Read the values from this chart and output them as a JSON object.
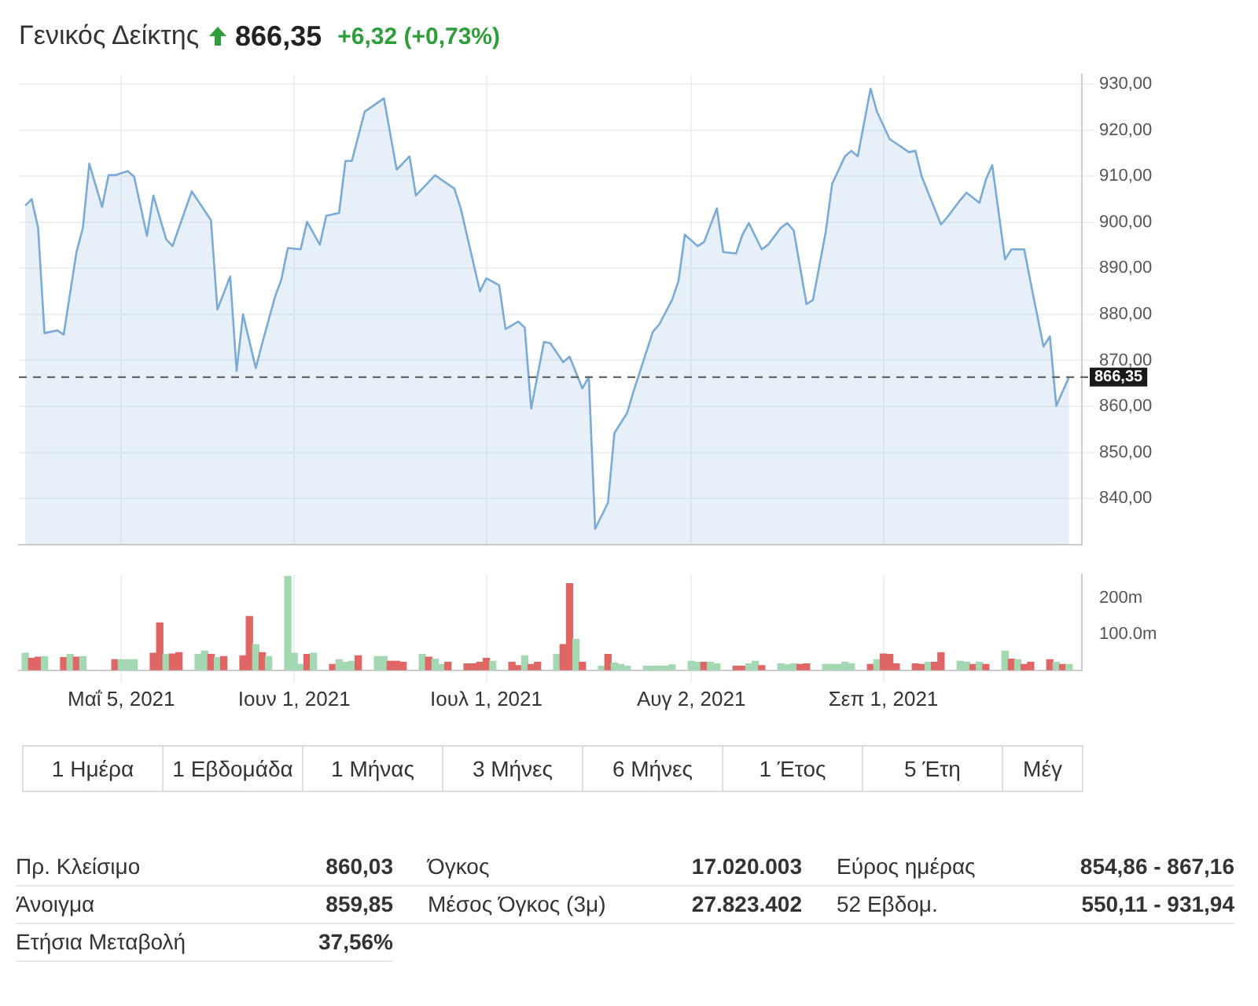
{
  "chart_data": [
    {
      "type": "area",
      "title": "Γενικός Δείκτης",
      "annotations": [
        "866,35",
        "+6,32 (+0,73%)"
      ],
      "color": "#7aaad6",
      "x": [
        "2021-04-20",
        "2021-04-21",
        "2021-04-22",
        "2021-04-23",
        "2021-04-25",
        "2021-04-26",
        "2021-04-28",
        "2021-04-29",
        "2021-04-30",
        "2021-05-02",
        "2021-05-03",
        "2021-05-04",
        "2021-05-06",
        "2021-05-07",
        "2021-05-09",
        "2021-05-10",
        "2021-05-12",
        "2021-05-13",
        "2021-05-14",
        "2021-05-16",
        "2021-05-19",
        "2021-05-20",
        "2021-05-22",
        "2021-05-23",
        "2021-05-24",
        "2021-05-26",
        "2021-05-27",
        "2021-05-29",
        "2021-05-30",
        "2021-05-31",
        "2021-06-02",
        "2021-06-03",
        "2021-06-05",
        "2021-06-06",
        "2021-06-08",
        "2021-06-09",
        "2021-06-10",
        "2021-06-12",
        "2021-06-15",
        "2021-06-17",
        "2021-06-19",
        "2021-06-20",
        "2021-06-23",
        "2021-06-24",
        "2021-06-26",
        "2021-06-27",
        "2021-06-30",
        "2021-07-01",
        "2021-07-03",
        "2021-07-04",
        "2021-07-06",
        "2021-07-07",
        "2021-07-08",
        "2021-07-10",
        "2021-07-11",
        "2021-07-13",
        "2021-07-14",
        "2021-07-16",
        "2021-07-17",
        "2021-07-18",
        "2021-07-20",
        "2021-07-21",
        "2021-07-23",
        "2021-07-24",
        "2021-07-27",
        "2021-07-28",
        "2021-07-30",
        "2021-07-31",
        "2021-08-01",
        "2021-08-03",
        "2021-08-04",
        "2021-08-06",
        "2021-08-07",
        "2021-08-09",
        "2021-08-10",
        "2021-08-11",
        "2021-08-13",
        "2021-08-14",
        "2021-08-16",
        "2021-08-17",
        "2021-08-18",
        "2021-08-20",
        "2021-08-21",
        "2021-08-23",
        "2021-08-24",
        "2021-08-26",
        "2021-08-27",
        "2021-08-28",
        "2021-08-30",
        "2021-08-31",
        "2021-09-02",
        "2021-09-03",
        "2021-09-05",
        "2021-09-06",
        "2021-09-07",
        "2021-09-08",
        "2021-09-10",
        "2021-09-11",
        "2021-09-13",
        "2021-09-14",
        "2021-09-16",
        "2021-09-17",
        "2021-09-18",
        "2021-09-20",
        "2021-09-21",
        "2021-09-23",
        "2021-09-24",
        "2021-09-26",
        "2021-09-27",
        "2021-09-28",
        "2021-09-30"
      ],
      "values": [
        903.6,
        905,
        898.8,
        875.9,
        876.5,
        875.6,
        893.5,
        898.8,
        912.7,
        903.3,
        910.2,
        910.2,
        911.1,
        909.9,
        897,
        905.8,
        896.3,
        894.8,
        898.8,
        906.7,
        900.4,
        881,
        888.2,
        867.7,
        880,
        868.3,
        873.7,
        883.8,
        887.6,
        894.4,
        894.1,
        900.1,
        895.1,
        901.4,
        902,
        913.3,
        913.3,
        924,
        926.9,
        911.4,
        914.3,
        905.8,
        910.2,
        909.2,
        907.3,
        903,
        885,
        887.8,
        886.3,
        876.8,
        878.4,
        877.1,
        859.5,
        874,
        873.7,
        869.6,
        870.8,
        863.9,
        866.4,
        833.4,
        839.1,
        854.2,
        858.6,
        863.3,
        876.2,
        877.8,
        883.1,
        887.2,
        897.3,
        894.8,
        895.7,
        903,
        893.5,
        893.2,
        897.3,
        899.8,
        894.1,
        895.1,
        898.8,
        899.8,
        898.2,
        882.2,
        883.1,
        897.9,
        908.3,
        914.3,
        915.5,
        914.3,
        929,
        924,
        918,
        917.1,
        915.2,
        915.5,
        909.9,
        906.4,
        899.5,
        901.1,
        904.8,
        906.4,
        904.2,
        909.2,
        912.4,
        891.9,
        894.1,
        894.1,
        886.9,
        873,
        875.2,
        860.1,
        866.4
      ],
      "xlim": [
        "2021-04-19",
        "2021-10-02"
      ],
      "xticks": [
        {
          "value": "2021-05-05",
          "label": null
        },
        {
          "value": "2021-06-01",
          "label": null
        },
        {
          "value": "2021-07-01",
          "label": null
        },
        {
          "value": "2021-08-02",
          "label": null
        },
        {
          "value": "2021-09-01",
          "label": null
        }
      ],
      "ylim": [
        830,
        932
      ],
      "yticks": [
        {
          "value": 840,
          "label": "840,00"
        },
        {
          "value": 850,
          "label": "850,00"
        },
        {
          "value": 860,
          "label": "860,00"
        },
        {
          "value": 870,
          "label": "870,00"
        },
        {
          "value": 880,
          "label": "880,00"
        },
        {
          "value": 890,
          "label": "890,00"
        },
        {
          "value": 900,
          "label": "900,00"
        },
        {
          "value": 910,
          "label": "910,00"
        },
        {
          "value": 920,
          "label": "920,00"
        },
        {
          "value": 930,
          "label": "930,00"
        }
      ],
      "ref_lines": [
        {
          "axis": "y",
          "value": 866.35,
          "label": "866,35",
          "color": "#666666",
          "line_style": "dashed"
        }
      ],
      "grid": true,
      "tick_labels": "y"
    },
    {
      "type": "bar",
      "x": [
        "2021-04-20",
        "2021-04-21",
        "2021-04-22",
        "2021-04-23",
        "2021-04-26",
        "2021-04-27",
        "2021-04-28",
        "2021-04-29",
        "2021-05-04",
        "2021-05-05",
        "2021-05-06",
        "2021-05-07",
        "2021-05-10",
        "2021-05-11",
        "2021-05-12",
        "2021-05-13",
        "2021-05-14",
        "2021-05-17",
        "2021-05-18",
        "2021-05-19",
        "2021-05-20",
        "2021-05-21",
        "2021-05-24",
        "2021-05-25",
        "2021-05-26",
        "2021-05-27",
        "2021-05-28",
        "2021-05-31",
        "2021-06-01",
        "2021-06-02",
        "2021-06-03",
        "2021-06-04",
        "2021-06-07",
        "2021-06-08",
        "2021-06-09",
        "2021-06-10",
        "2021-06-11",
        "2021-06-14",
        "2021-06-15",
        "2021-06-16",
        "2021-06-17",
        "2021-06-18",
        "2021-06-21",
        "2021-06-22",
        "2021-06-23",
        "2021-06-24",
        "2021-06-25",
        "2021-06-28",
        "2021-06-29",
        "2021-06-30",
        "2021-07-01",
        "2021-07-02",
        "2021-07-05",
        "2021-07-06",
        "2021-07-07",
        "2021-07-08",
        "2021-07-09",
        "2021-07-12",
        "2021-07-13",
        "2021-07-14",
        "2021-07-15",
        "2021-07-16",
        "2021-07-19",
        "2021-07-20",
        "2021-07-21",
        "2021-07-22",
        "2021-07-23",
        "2021-07-26",
        "2021-07-27",
        "2021-07-28",
        "2021-07-29",
        "2021-07-30",
        "2021-08-02",
        "2021-08-03",
        "2021-08-04",
        "2021-08-05",
        "2021-08-06",
        "2021-08-09",
        "2021-08-10",
        "2021-08-11",
        "2021-08-12",
        "2021-08-13",
        "2021-08-16",
        "2021-08-17",
        "2021-08-18",
        "2021-08-19",
        "2021-08-20",
        "2021-08-23",
        "2021-08-24",
        "2021-08-25",
        "2021-08-26",
        "2021-08-27",
        "2021-08-30",
        "2021-08-31",
        "2021-09-01",
        "2021-09-02",
        "2021-09-03",
        "2021-09-06",
        "2021-09-07",
        "2021-09-08",
        "2021-09-09",
        "2021-09-10",
        "2021-09-13",
        "2021-09-14",
        "2021-09-15",
        "2021-09-16",
        "2021-09-17",
        "2021-09-20",
        "2021-09-21",
        "2021-09-22",
        "2021-09-23",
        "2021-09-24",
        "2021-09-27",
        "2021-09-28",
        "2021-09-29",
        "2021-09-30"
      ],
      "values": [
        47,
        33,
        36,
        38,
        35,
        44,
        36,
        38,
        29,
        29,
        29,
        29,
        47,
        131,
        44,
        45,
        49,
        44,
        53,
        44,
        35,
        38,
        40,
        149,
        71,
        49,
        38,
        260,
        47,
        16,
        44,
        47,
        16,
        29,
        22,
        25,
        40,
        38,
        38,
        25,
        25,
        22,
        44,
        36,
        31,
        16,
        22,
        18,
        18,
        22,
        33,
        25,
        22,
        13,
        40,
        16,
        22,
        44,
        71,
        240,
        86,
        22,
        11,
        44,
        20,
        16,
        11,
        11,
        11,
        11,
        11,
        15,
        25,
        22,
        22,
        22,
        18,
        11,
        11,
        18,
        25,
        13,
        18,
        15,
        18,
        16,
        18,
        16,
        16,
        16,
        22,
        18,
        16,
        29,
        45,
        44,
        18,
        18,
        16,
        22,
        22,
        49,
        25,
        22,
        16,
        22,
        16,
        53,
        31,
        29,
        16,
        22,
        29,
        22,
        16,
        16
      ],
      "colors": [
        "#a3d8b2",
        "#e06666",
        "#e06666",
        "#a3d8b2",
        "#e06666",
        "#a3d8b2",
        "#e06666",
        "#a3d8b2",
        "#e06666",
        "#a3d8b2",
        "#a3d8b2",
        "#a3d8b2",
        "#e06666",
        "#e06666",
        "#a3d8b2",
        "#e06666",
        "#e06666",
        "#a3d8b2",
        "#a3d8b2",
        "#e06666",
        "#a3d8b2",
        "#e06666",
        "#e06666",
        "#e06666",
        "#a3d8b2",
        "#e06666",
        "#a3d8b2",
        "#a3d8b2",
        "#a3d8b2",
        "#a3d8b2",
        "#e06666",
        "#a3d8b2",
        "#e06666",
        "#a3d8b2",
        "#a3d8b2",
        "#a3d8b2",
        "#e06666",
        "#a3d8b2",
        "#a3d8b2",
        "#e06666",
        "#e06666",
        "#e06666",
        "#a3d8b2",
        "#e06666",
        "#a3d8b2",
        "#a3d8b2",
        "#e06666",
        "#e06666",
        "#e06666",
        "#e06666",
        "#e06666",
        "#a3d8b2",
        "#e06666",
        "#e06666",
        "#a3d8b2",
        "#e06666",
        "#e06666",
        "#a3d8b2",
        "#e06666",
        "#e06666",
        "#a3d8b2",
        "#e06666",
        "#a3d8b2",
        "#e06666",
        "#a3d8b2",
        "#a3d8b2",
        "#a3d8b2",
        "#a3d8b2",
        "#a3d8b2",
        "#a3d8b2",
        "#a3d8b2",
        "#a3d8b2",
        "#a3d8b2",
        "#a3d8b2",
        "#e06666",
        "#a3d8b2",
        "#a3d8b2",
        "#e06666",
        "#e06666",
        "#a3d8b2",
        "#a3d8b2",
        "#e06666",
        "#a3d8b2",
        "#a3d8b2",
        "#a3d8b2",
        "#e06666",
        "#e06666",
        "#a3d8b2",
        "#a3d8b2",
        "#a3d8b2",
        "#a3d8b2",
        "#a3d8b2",
        "#e06666",
        "#a3d8b2",
        "#e06666",
        "#e06666",
        "#e06666",
        "#e06666",
        "#e06666",
        "#a3d8b2",
        "#e06666",
        "#e06666",
        "#a3d8b2",
        "#a3d8b2",
        "#e06666",
        "#a3d8b2",
        "#e06666",
        "#a3d8b2",
        "#e06666",
        "#a3d8b2",
        "#e06666",
        "#e06666",
        "#e06666",
        "#a3d8b2",
        "#e06666",
        "#a3d8b2"
      ],
      "xlim": [
        "2021-04-19",
        "2021-10-02"
      ],
      "xticks": [
        {
          "value": "2021-05-05",
          "label": "Μαΐ 5, 2021"
        },
        {
          "value": "2021-06-01",
          "label": "Ιουν 1, 2021"
        },
        {
          "value": "2021-07-01",
          "label": "Ιουλ 1, 2021"
        },
        {
          "value": "2021-08-02",
          "label": "Αυγ 2, 2021"
        },
        {
          "value": "2021-09-01",
          "label": "Σεπ 1, 2021"
        }
      ],
      "ylim": [
        0,
        265
      ],
      "yticks": [
        {
          "value": 100,
          "label": "100.0m"
        },
        {
          "value": 200,
          "label": "200m"
        }
      ],
      "grid": "x"
    },
    {
      "type": "other",
      "annotations": [
        "1 Ημέρα",
        "1 Εβδομάδα",
        "1 Μήνας",
        "3 Μήνες",
        "6 Μήνες",
        "1 Έτος",
        "5 Έτη",
        "Μέγ"
      ]
    },
    {
      "type": "other",
      "annotations": [
        "Πρ. Κλείσιμο",
        "860,03",
        "Όγκος",
        "17.020.003",
        "Εύρος ημέρας",
        "854,86 - 867,16",
        "Άνοιγμα",
        "859,85",
        "Μέσος Όγκος (3μ)",
        "27.823.402",
        "52 Εβδομ.",
        "550,11 - 931,94",
        "Ετήσια Μεταβολή",
        "37,56%"
      ]
    }
  ]
}
